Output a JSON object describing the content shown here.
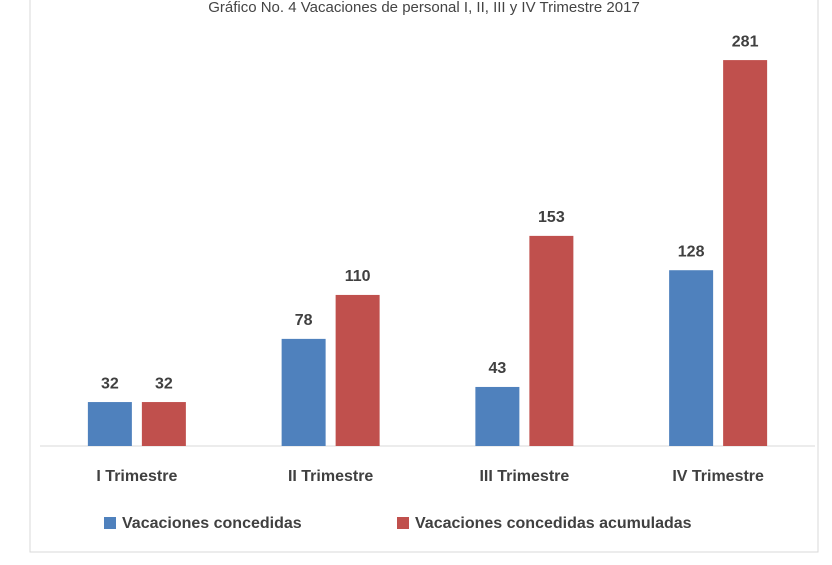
{
  "chart_data": {
    "type": "bar",
    "title": "Gráfico No. 4 Vacaciones de personal I, II, III y IV Trimestre 2017",
    "categories": [
      "I Trimestre",
      "II Trimestre",
      "III Trimestre",
      "IV Trimestre"
    ],
    "series": [
      {
        "name": "Vacaciones concedidas",
        "color": "#4f81bd",
        "values": [
          32,
          78,
          43,
          128
        ]
      },
      {
        "name": "Vacaciones concedidas acumuladas",
        "color": "#c0504d",
        "values": [
          32,
          110,
          153,
          281
        ]
      }
    ],
    "ylim": [
      0,
      300
    ],
    "legend": "bottom"
  }
}
